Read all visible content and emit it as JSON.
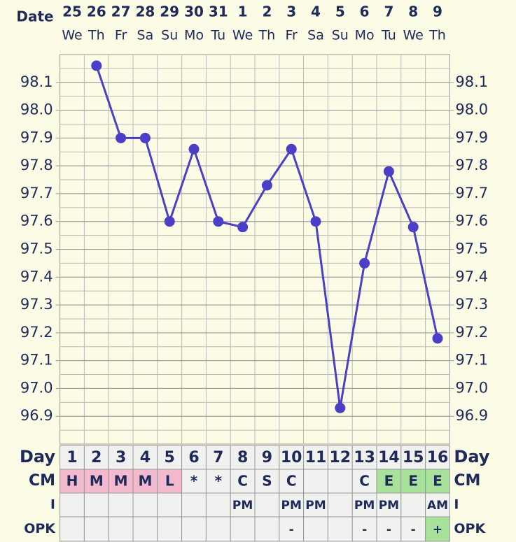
{
  "chart_data": {
    "type": "line",
    "x_label": "Date",
    "dates": [
      25,
      26,
      27,
      28,
      29,
      30,
      31,
      1,
      2,
      3,
      4,
      5,
      6,
      7,
      8,
      9
    ],
    "weekdays": [
      "We",
      "Th",
      "Fr",
      "Sa",
      "Su",
      "Mo",
      "Tu",
      "We",
      "Th",
      "Fr",
      "Sa",
      "Su",
      "Mo",
      "Tu",
      "We",
      "Th"
    ],
    "series": [
      {
        "color": "#4b3fc8",
        "values": [
          null,
          98.16,
          97.9,
          97.9,
          97.6,
          97.86,
          97.6,
          97.58,
          97.73,
          97.86,
          97.6,
          96.93,
          97.45,
          97.78,
          97.58,
          97.18
        ]
      }
    ],
    "ylim": [
      96.8,
      98.2
    ],
    "yticks": [
      96.9,
      {
        "value": 97,
        "label": "97.0"
      },
      97.1,
      97.2,
      97.3,
      97.4,
      97.5,
      97.6,
      97.7,
      97.8,
      97.9,
      {
        "value": 98,
        "label": "98.0"
      },
      98.1
    ],
    "grid": true
  },
  "table": {
    "rows": [
      {
        "label": "Day",
        "cells": [
          1,
          2,
          3,
          4,
          5,
          6,
          7,
          8,
          9,
          10,
          11,
          12,
          13,
          14,
          15,
          16
        ],
        "fills": [
          null,
          null,
          null,
          null,
          null,
          null,
          null,
          null,
          null,
          null,
          null,
          null,
          null,
          null,
          null,
          null
        ]
      },
      {
        "label": "CM",
        "cells": [
          "H",
          "M",
          "M",
          "M",
          "L",
          "*",
          "*",
          "C",
          "S",
          "C",
          null,
          null,
          "C",
          "E",
          "E",
          "E"
        ],
        "fills": [
          "#f3b9cd",
          "#f3b9cd",
          "#f3b9cd",
          "#f3b9cd",
          "#f3b9cd",
          null,
          null,
          null,
          null,
          null,
          null,
          null,
          null,
          "#a8e29a",
          "#a8e29a",
          "#a8e29a"
        ]
      },
      {
        "label": "I",
        "cells": [
          null,
          null,
          null,
          null,
          null,
          null,
          null,
          "PM",
          null,
          "PM",
          "PM",
          null,
          "PM",
          "PM",
          null,
          "AM"
        ],
        "fills": [
          null,
          null,
          null,
          null,
          null,
          null,
          null,
          null,
          null,
          null,
          null,
          null,
          null,
          null,
          null,
          null
        ]
      },
      {
        "label": "OPK",
        "cells": [
          null,
          null,
          null,
          null,
          null,
          null,
          null,
          null,
          null,
          "-",
          null,
          null,
          "-",
          "-",
          "-",
          "+"
        ],
        "fills": [
          null,
          null,
          null,
          null,
          null,
          null,
          null,
          null,
          null,
          null,
          null,
          null,
          null,
          null,
          null,
          "#a8e29a"
        ]
      }
    ]
  }
}
